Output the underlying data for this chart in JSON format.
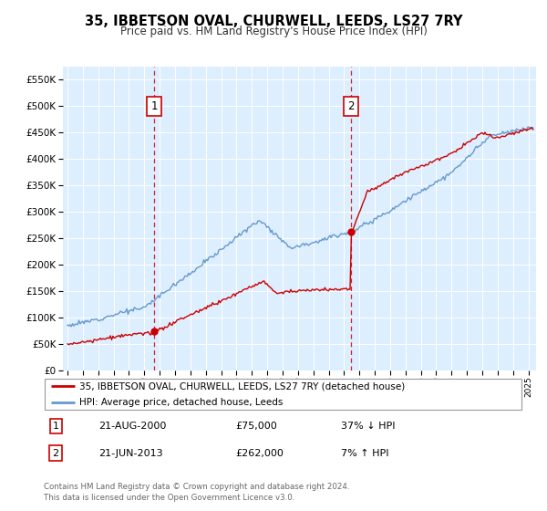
{
  "title": "35, IBBETSON OVAL, CHURWELL, LEEDS, LS27 7RY",
  "subtitle": "Price paid vs. HM Land Registry's House Price Index (HPI)",
  "legend_line1": "35, IBBETSON OVAL, CHURWELL, LEEDS, LS27 7RY (detached house)",
  "legend_line2": "HPI: Average price, detached house, Leeds",
  "footnote": "Contains HM Land Registry data © Crown copyright and database right 2024.\nThis data is licensed under the Open Government Licence v3.0.",
  "purchase1_date": "21-AUG-2000",
  "purchase1_price": 75000,
  "purchase1_pct": "37% ↓ HPI",
  "purchase1_year": 2000.64,
  "purchase2_date": "21-JUN-2013",
  "purchase2_price": 262000,
  "purchase2_pct": "7% ↑ HPI",
  "purchase2_year": 2013.47,
  "red_color": "#cc0000",
  "blue_color": "#6699cc",
  "plot_bg": "#ddeeff",
  "ylim_max": 575000,
  "xlim_start": 1994.7,
  "xlim_end": 2025.5
}
